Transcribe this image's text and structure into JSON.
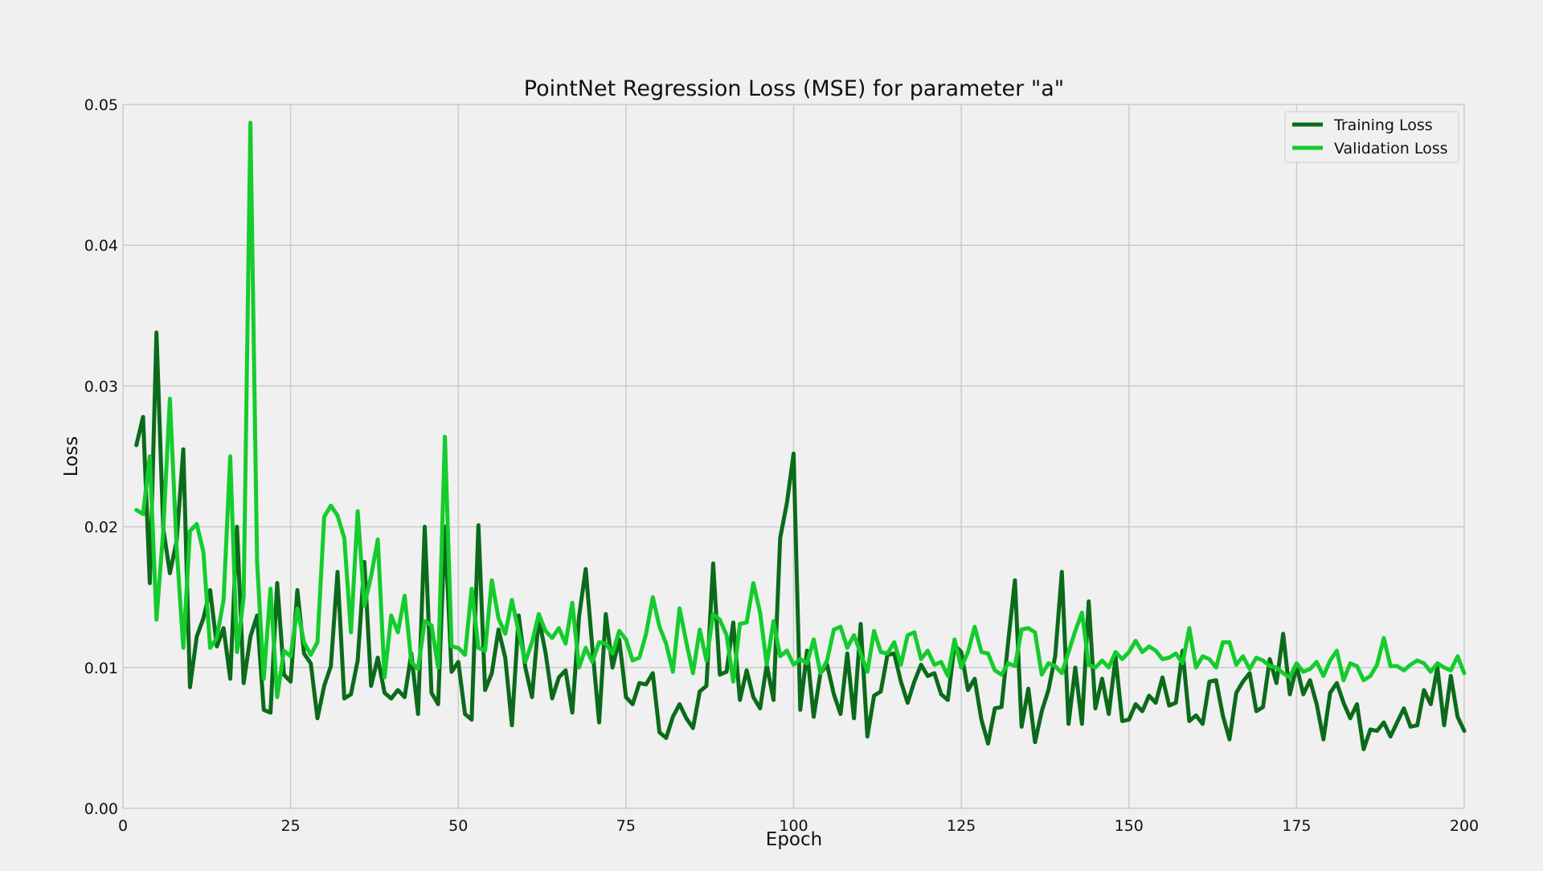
{
  "colors": {
    "background": "#f0f0f0",
    "grid": "#cbcbcb",
    "text": "#111111",
    "training": "#0b6b1a",
    "validation": "#14cc2c"
  },
  "chart_data": {
    "type": "line",
    "title": "PointNet Regression Loss (MSE) for parameter \"a\"",
    "xlabel": "Epoch",
    "ylabel": "Loss",
    "xlim": [
      0,
      200
    ],
    "ylim": [
      0,
      0.05
    ],
    "xticks": [
      0,
      25,
      50,
      75,
      100,
      125,
      150,
      175,
      200
    ],
    "xtick_labels": [
      "0",
      "25",
      "50",
      "75",
      "100",
      "125",
      "150",
      "175",
      "200"
    ],
    "yticks": [
      0,
      0.01,
      0.02,
      0.03,
      0.04,
      0.05
    ],
    "ytick_labels": [
      "0.00",
      "0.01",
      "0.02",
      "0.03",
      "0.04",
      "0.05"
    ],
    "grid": true,
    "legend_position": "top-right",
    "series": [
      {
        "name": "Training Loss",
        "color": "#0b6b1a",
        "x_start": 2,
        "values": [
          0.0258,
          0.0278,
          0.016,
          0.0338,
          0.0199,
          0.0167,
          0.019,
          0.0255,
          0.0086,
          0.0122,
          0.0135,
          0.0155,
          0.0115,
          0.0128,
          0.0092,
          0.02,
          0.0089,
          0.0122,
          0.0137,
          0.007,
          0.0068,
          0.016,
          0.0095,
          0.009,
          0.0155,
          0.011,
          0.0103,
          0.0064,
          0.0087,
          0.0101,
          0.0168,
          0.0078,
          0.0081,
          0.0105,
          0.0175,
          0.0087,
          0.0107,
          0.0082,
          0.0078,
          0.0084,
          0.0079,
          0.011,
          0.0067,
          0.02,
          0.0082,
          0.0074,
          0.02,
          0.0097,
          0.0104,
          0.0067,
          0.0063,
          0.0201,
          0.0084,
          0.0096,
          0.0127,
          0.0107,
          0.0059,
          0.0137,
          0.01,
          0.0079,
          0.0135,
          0.0111,
          0.0078,
          0.0093,
          0.0098,
          0.0068,
          0.0136,
          0.017,
          0.0114,
          0.0061,
          0.0138,
          0.01,
          0.012,
          0.0079,
          0.0074,
          0.0089,
          0.0088,
          0.0096,
          0.0054,
          0.005,
          0.0065,
          0.0074,
          0.0064,
          0.0057,
          0.0083,
          0.0087,
          0.0174,
          0.0095,
          0.0097,
          0.0132,
          0.0077,
          0.0098,
          0.0079,
          0.0071,
          0.0102,
          0.0077,
          0.0192,
          0.0217,
          0.0252,
          0.007,
          0.0112,
          0.0065,
          0.0096,
          0.0102,
          0.0081,
          0.0067,
          0.011,
          0.0064,
          0.0131,
          0.0051,
          0.008,
          0.0083,
          0.0109,
          0.011,
          0.009,
          0.0075,
          0.009,
          0.0102,
          0.0094,
          0.0096,
          0.0081,
          0.0077,
          0.0116,
          0.0111,
          0.0084,
          0.0092,
          0.0063,
          0.0046,
          0.0071,
          0.0072,
          0.0118,
          0.0162,
          0.0058,
          0.0085,
          0.0047,
          0.0069,
          0.0084,
          0.0108,
          0.0168,
          0.006,
          0.01,
          0.006,
          0.0147,
          0.0071,
          0.0092,
          0.0067,
          0.0107,
          0.0062,
          0.0063,
          0.0074,
          0.0069,
          0.008,
          0.0075,
          0.0093,
          0.0073,
          0.0075,
          0.0112,
          0.0062,
          0.0066,
          0.006,
          0.009,
          0.0091,
          0.0066,
          0.0049,
          0.0082,
          0.009,
          0.0096,
          0.0069,
          0.0072,
          0.0106,
          0.0089,
          0.0124,
          0.0081,
          0.0101,
          0.0081,
          0.0091,
          0.0074,
          0.0049,
          0.0082,
          0.0089,
          0.0075,
          0.0064,
          0.0074,
          0.0042,
          0.0056,
          0.0055,
          0.0061,
          0.0051,
          0.0061,
          0.0071,
          0.0058,
          0.0059,
          0.0084,
          0.0074,
          0.01,
          0.0059,
          0.0094,
          0.0065,
          0.0055
        ]
      },
      {
        "name": "Validation Loss",
        "color": "#14cc2c",
        "x_start": 2,
        "values": [
          0.0212,
          0.0209,
          0.025,
          0.0134,
          0.0197,
          0.0291,
          0.0185,
          0.0114,
          0.0197,
          0.0202,
          0.0182,
          0.0114,
          0.0121,
          0.0148,
          0.025,
          0.0111,
          0.015,
          0.0487,
          0.0175,
          0.0092,
          0.0156,
          0.0079,
          0.0112,
          0.0108,
          0.0142,
          0.0118,
          0.0109,
          0.0118,
          0.0207,
          0.0215,
          0.0208,
          0.0192,
          0.0125,
          0.0211,
          0.0144,
          0.0165,
          0.0191,
          0.0093,
          0.0137,
          0.0125,
          0.0151,
          0.0104,
          0.0099,
          0.0133,
          0.013,
          0.01,
          0.0264,
          0.0115,
          0.0114,
          0.0109,
          0.0156,
          0.0114,
          0.0112,
          0.0162,
          0.0135,
          0.0124,
          0.0148,
          0.0125,
          0.0104,
          0.0118,
          0.0138,
          0.0126,
          0.0121,
          0.0128,
          0.0117,
          0.0146,
          0.01,
          0.0114,
          0.0104,
          0.0118,
          0.0117,
          0.011,
          0.0126,
          0.012,
          0.0105,
          0.0107,
          0.0124,
          0.015,
          0.0129,
          0.0117,
          0.0097,
          0.0142,
          0.0118,
          0.0096,
          0.0127,
          0.0105,
          0.0138,
          0.0134,
          0.0123,
          0.009,
          0.0131,
          0.0132,
          0.016,
          0.0139,
          0.0102,
          0.0133,
          0.0108,
          0.0112,
          0.0102,
          0.0106,
          0.0103,
          0.012,
          0.0096,
          0.0105,
          0.0127,
          0.0129,
          0.0114,
          0.0123,
          0.011,
          0.0097,
          0.0126,
          0.0111,
          0.011,
          0.0118,
          0.0102,
          0.0123,
          0.0125,
          0.0106,
          0.0112,
          0.0102,
          0.0104,
          0.0094,
          0.012,
          0.01,
          0.0111,
          0.0129,
          0.0111,
          0.011,
          0.0098,
          0.0095,
          0.0103,
          0.0101,
          0.0127,
          0.0128,
          0.0125,
          0.0095,
          0.0103,
          0.0101,
          0.0096,
          0.0111,
          0.0126,
          0.0139,
          0.0102,
          0.01,
          0.0105,
          0.01,
          0.0111,
          0.0106,
          0.0111,
          0.0119,
          0.0111,
          0.0115,
          0.0112,
          0.0106,
          0.0107,
          0.011,
          0.0103,
          0.0128,
          0.01,
          0.0108,
          0.0106,
          0.01,
          0.0118,
          0.0118,
          0.0102,
          0.0108,
          0.0099,
          0.0107,
          0.0105,
          0.0101,
          0.01,
          0.0096,
          0.0093,
          0.0103,
          0.0097,
          0.0099,
          0.0104,
          0.0094,
          0.0105,
          0.0112,
          0.0091,
          0.0103,
          0.0101,
          0.0091,
          0.0094,
          0.0102,
          0.0121,
          0.0101,
          0.0101,
          0.0098,
          0.0102,
          0.0105,
          0.0103,
          0.0097,
          0.0103,
          0.01,
          0.0098,
          0.0108,
          0.0096
        ]
      }
    ]
  }
}
